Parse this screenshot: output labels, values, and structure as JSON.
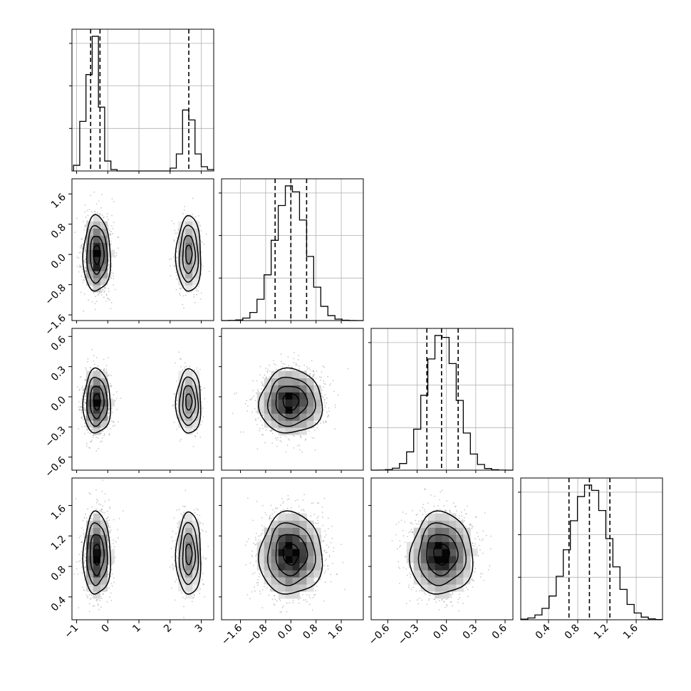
{
  "chart_data": {
    "type": "corner",
    "title": "",
    "grid": true,
    "parameters": [
      {
        "xlim": [
          -1.15,
          3.4
        ],
        "ylim": [
          -1.75,
          2.0
        ],
        "ticks": [
          -1,
          0,
          1,
          2,
          3
        ],
        "labels": [
          "−1",
          "0",
          "1",
          "2",
          "3"
        ]
      },
      {
        "xlim": [
          -2.2,
          2.3
        ],
        "ylim": [
          -1.75,
          2.0
        ],
        "ticks": [
          -1.6,
          -0.8,
          0.0,
          0.8,
          1.6
        ],
        "labels": [
          "−1.6",
          "−0.8",
          "0.0",
          "0.8",
          "1.6"
        ]
      },
      {
        "xlim": [
          -0.77,
          0.68
        ],
        "ylim": [
          -0.73,
          0.68
        ],
        "ticks": [
          -0.6,
          -0.3,
          0.0,
          0.3,
          0.6
        ],
        "labels": [
          "−0.6",
          "−0.3",
          "0.0",
          "0.3",
          "0.6"
        ]
      },
      {
        "xlim": [
          0.02,
          1.96
        ],
        "ylim": [
          0.1,
          1.96
        ],
        "ticks": [
          0.4,
          0.8,
          1.2,
          1.6
        ],
        "labels": [
          "0.4",
          "0.8",
          "1.2",
          "1.6"
        ]
      }
    ],
    "histograms": [
      {
        "param": 0,
        "quantiles": [
          -0.55,
          -0.25,
          2.6
        ],
        "bins": [
          {
            "x0": -1.1,
            "x1": -0.9,
            "h": 0.04
          },
          {
            "x0": -0.9,
            "x1": -0.7,
            "h": 0.35
          },
          {
            "x0": -0.7,
            "x1": -0.5,
            "h": 0.68
          },
          {
            "x0": -0.5,
            "x1": -0.3,
            "h": 0.95
          },
          {
            "x0": -0.3,
            "x1": -0.1,
            "h": 0.45
          },
          {
            "x0": -0.1,
            "x1": 0.1,
            "h": 0.07
          },
          {
            "x0": 0.1,
            "x1": 0.3,
            "h": 0.01
          },
          {
            "x0": 0.3,
            "x1": 2.0,
            "h": 0.0
          },
          {
            "x0": 2.0,
            "x1": 2.2,
            "h": 0.02
          },
          {
            "x0": 2.2,
            "x1": 2.4,
            "h": 0.12
          },
          {
            "x0": 2.4,
            "x1": 2.6,
            "h": 0.43
          },
          {
            "x0": 2.6,
            "x1": 2.8,
            "h": 0.36
          },
          {
            "x0": 2.8,
            "x1": 3.0,
            "h": 0.12
          },
          {
            "x0": 3.0,
            "x1": 3.2,
            "h": 0.03
          },
          {
            "x0": 3.2,
            "x1": 3.4,
            "h": 0.01
          }
        ]
      },
      {
        "param": 1,
        "quantiles": [
          -0.5,
          0.0,
          0.5
        ],
        "mean": 0.0,
        "sd": 0.5
      },
      {
        "param": 2,
        "quantiles": [
          -0.2,
          -0.05,
          0.12
        ],
        "mean": -0.05,
        "sd": 0.16
      },
      {
        "param": 3,
        "quantiles": [
          0.68,
          0.96,
          1.24
        ],
        "mean": 0.96,
        "sd": 0.27
      }
    ],
    "pairs": [
      {
        "row": 1,
        "col": 0,
        "clusters": [
          {
            "weight": 0.67,
            "mx": -0.35,
            "my": 0.0,
            "sx": 0.22,
            "sy": 0.5
          },
          {
            "weight": 0.33,
            "mx": 2.6,
            "my": 0.0,
            "sx": 0.2,
            "sy": 0.5
          }
        ]
      },
      {
        "row": 2,
        "col": 0,
        "clusters": [
          {
            "weight": 0.67,
            "mx": -0.35,
            "my": -0.05,
            "sx": 0.22,
            "sy": 0.16
          },
          {
            "weight": 0.33,
            "mx": 2.6,
            "my": -0.05,
            "sx": 0.2,
            "sy": 0.16
          }
        ]
      },
      {
        "row": 2,
        "col": 1,
        "clusters": [
          {
            "weight": 1.0,
            "mx": 0.0,
            "my": -0.05,
            "sx": 0.5,
            "sy": 0.16
          }
        ]
      },
      {
        "row": 3,
        "col": 0,
        "clusters": [
          {
            "weight": 0.67,
            "mx": -0.35,
            "my": 0.96,
            "sx": 0.22,
            "sy": 0.27
          },
          {
            "weight": 0.33,
            "mx": 2.6,
            "my": 0.96,
            "sx": 0.2,
            "sy": 0.27
          }
        ]
      },
      {
        "row": 3,
        "col": 1,
        "clusters": [
          {
            "weight": 1.0,
            "mx": 0.0,
            "my": 0.96,
            "sx": 0.5,
            "sy": 0.27
          }
        ]
      },
      {
        "row": 3,
        "col": 2,
        "clusters": [
          {
            "weight": 1.0,
            "mx": -0.05,
            "my": 0.96,
            "sx": 0.16,
            "sy": 0.27
          }
        ]
      }
    ],
    "contour_sigma_levels": [
      0.5,
      1.0,
      1.5,
      2.0
    ],
    "colors": {
      "line": "#000000",
      "scatter": "#9a9a9a",
      "grid": "#b0b0b0",
      "density_dark": "#000000",
      "density_light": "#ffffff"
    }
  }
}
